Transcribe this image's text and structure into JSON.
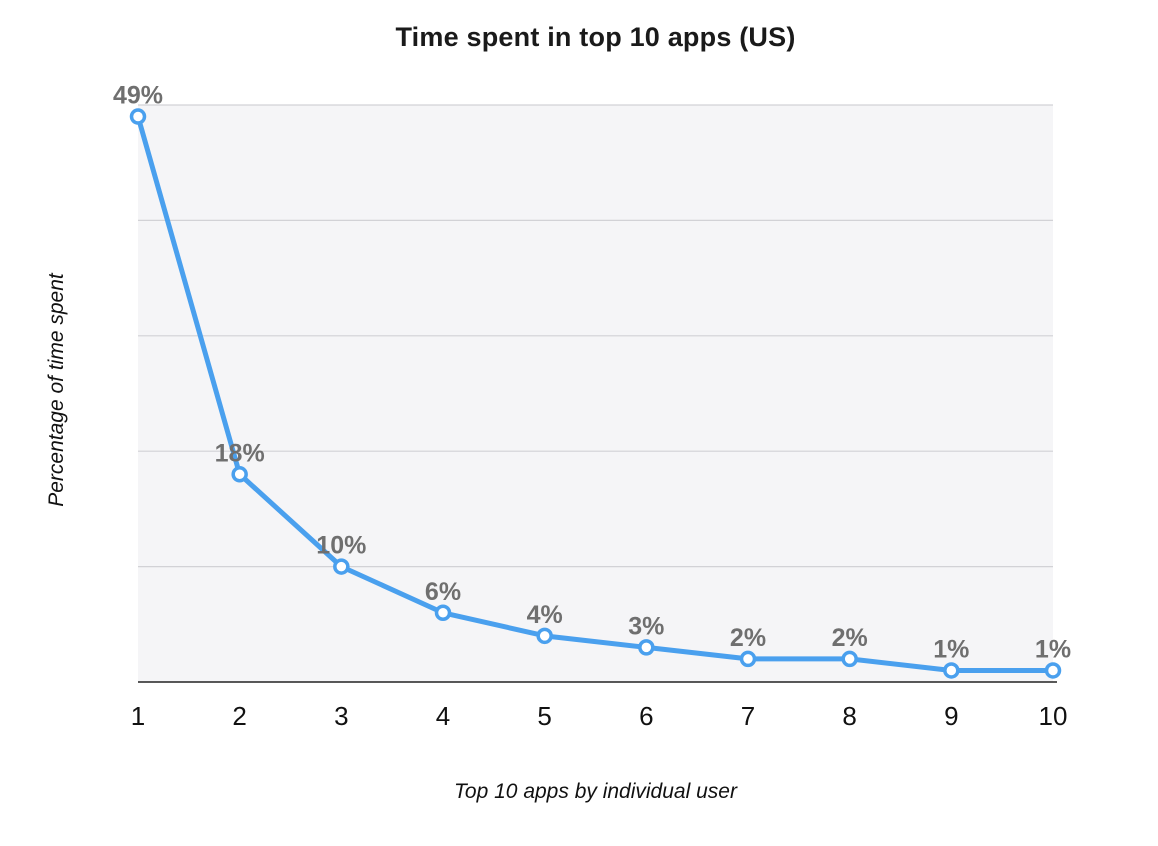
{
  "chart": {
    "title": "Time spent in top 10 apps (US)",
    "ylabel": "Percentage of time spent",
    "xlabel": "Top 10 apps by individual user"
  },
  "chart_data": {
    "type": "line",
    "title": "Time spent in top 10 apps (US)",
    "xlabel": "Top 10 apps by individual user",
    "ylabel": "Percentage of time spent",
    "x": [
      1,
      2,
      3,
      4,
      5,
      6,
      7,
      8,
      9,
      10
    ],
    "values": [
      49,
      18,
      10,
      6,
      4,
      3,
      2,
      2,
      1,
      1
    ],
    "point_labels": [
      "49%",
      "18%",
      "10%",
      "6%",
      "4%",
      "3%",
      "2%",
      "2%",
      "1%",
      "1%"
    ],
    "ylim": [
      0,
      50
    ],
    "grid_step": 10,
    "grid": "horizontal-only",
    "legend_position": "none",
    "colors": {
      "line": "#4aa0ee",
      "marker_fill": "#ffffff",
      "marker_stroke": "#4aa0ee",
      "data_label": "#6f6f6f",
      "grid": "#d2d2d6",
      "plot_bg": "#f5f5f7",
      "axis_line": "#222222",
      "title": "#1a1a1a",
      "tick_label": "#111111"
    }
  }
}
